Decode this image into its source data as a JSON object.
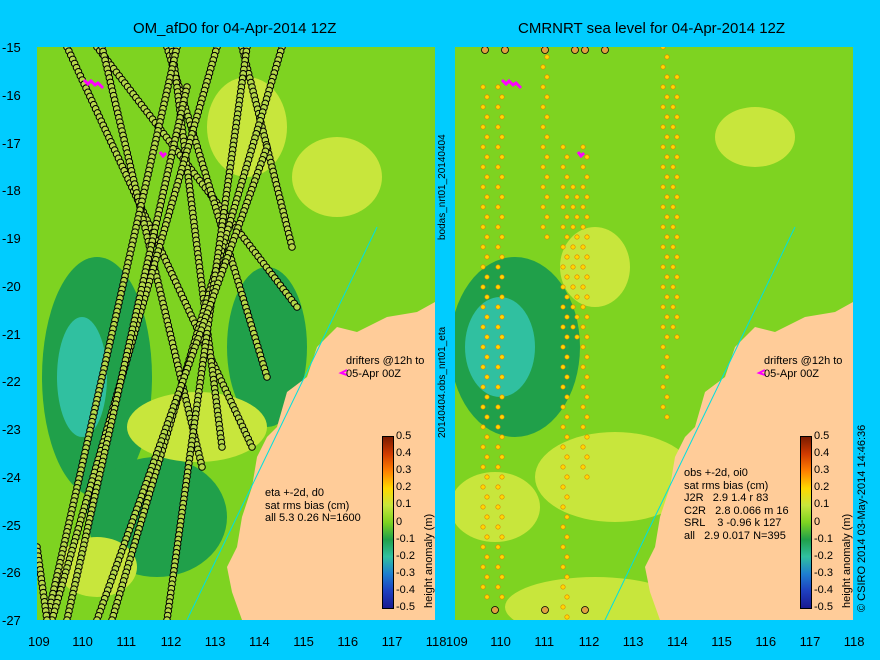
{
  "left_panel": {
    "title": "OM_afD0 for 04-Apr-2014 12Z",
    "drifters_text": "drifters @12h to\n05-Apr 00Z",
    "stats_text": "eta +-2d, d0\nsat rms bias (cm)\nall 5.3 0.26 N=1600"
  },
  "right_panel": {
    "title": "CMRNRT sea level  for 04-Apr-2014 12Z",
    "drifters_text": "drifters @12h to\n05-Apr 00Z",
    "stats_text": "obs +-2d, oi0\nsat rms bias (cm)\nJ2R   2.9 1.4 r 83\nC2R   2.8 0.066 m 16\nSRL    3 -0.96 k 127\nall   2.9 0.017 N=395"
  },
  "side_label": "20140404.obs_nrt01_eta",
  "side_label_top": "bodas_nrt01_20140404",
  "colorbar": {
    "label": "height anomaly (m)",
    "ticks": [
      "0.5",
      "0.4",
      "0.3",
      "0.2",
      "0.1",
      "0",
      "-0.1",
      "-0.2",
      "-0.3",
      "-0.4",
      "-0.5"
    ]
  },
  "credit": "© CSIRO 2014   03-May-2014 14:46:36",
  "x_ticks": [
    "109",
    "110",
    "111",
    "112",
    "113",
    "114",
    "115",
    "116",
    "117",
    "118"
  ],
  "y_ticks": [
    "-15",
    "-16",
    "-17",
    "-18",
    "-19",
    "-20",
    "-21",
    "-22",
    "-23",
    "-24",
    "-25",
    "-26",
    "-27"
  ],
  "colors": {
    "background": "#00ccff",
    "land": "#ffcc99",
    "sea_green": "#7ed321",
    "sea_light": "#c8e63c",
    "sea_dark": "#20a04a",
    "sea_cyan": "#30c0a0",
    "track_circles": "#000000",
    "drifters": "#ff00ff"
  }
}
